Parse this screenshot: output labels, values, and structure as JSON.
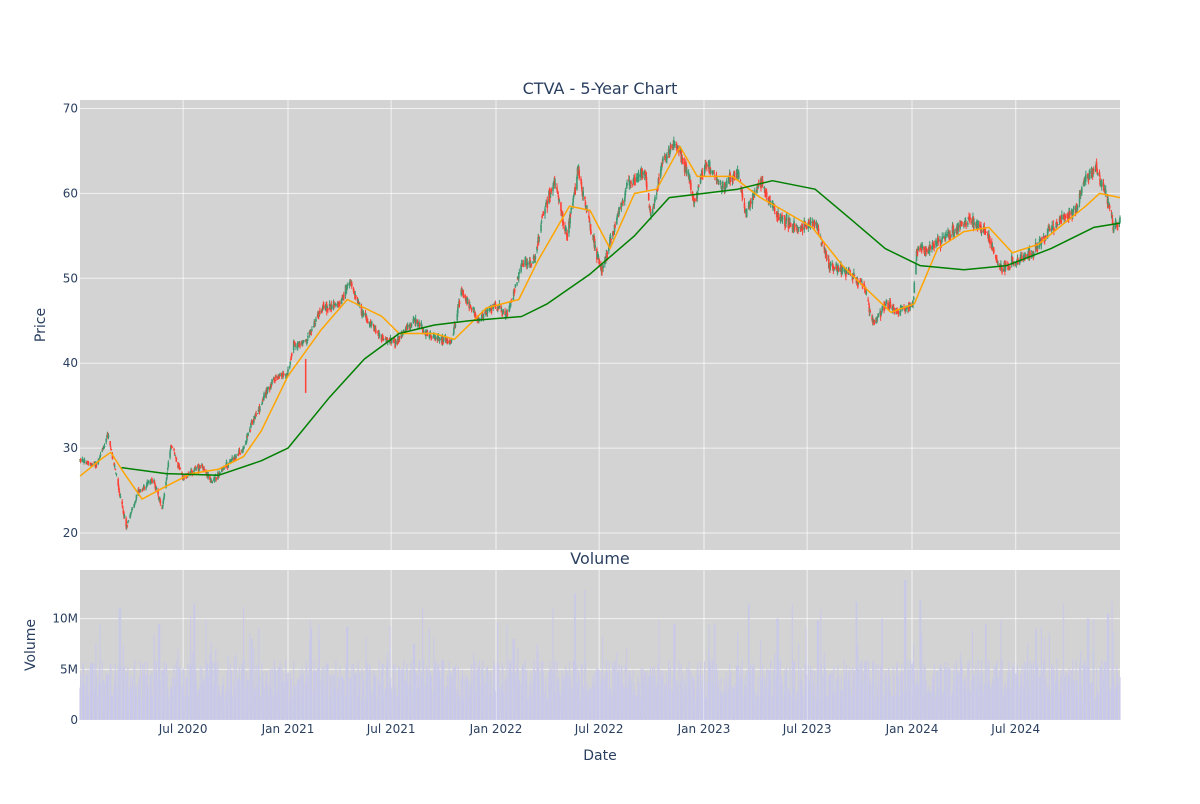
{
  "chart_data": [
    {
      "type": "candlestick",
      "title": "CTVA - 5-Year Chart",
      "ylabel": "Price",
      "ylim": [
        18,
        71
      ],
      "yticks": [
        20,
        30,
        40,
        50,
        60,
        70
      ],
      "grid": true,
      "background": "#d3d3d3",
      "colors": {
        "up": "#3d9970",
        "down": "#ff4136",
        "ma_fast": "#ffa500",
        "ma_slow": "#008000"
      },
      "key_points": [
        [
          "2020-01-02",
          28.6
        ],
        [
          "2020-02-01",
          28.0
        ],
        [
          "2020-02-20",
          31.6
        ],
        [
          "2020-03-05",
          27.0
        ],
        [
          "2020-03-23",
          20.8
        ],
        [
          "2020-04-15",
          25.0
        ],
        [
          "2020-05-10",
          26.2
        ],
        [
          "2020-05-25",
          22.8
        ],
        [
          "2020-06-10",
          30.5
        ],
        [
          "2020-07-01",
          26.5
        ],
        [
          "2020-08-01",
          28.0
        ],
        [
          "2020-08-20",
          26.0
        ],
        [
          "2020-09-15",
          28.0
        ],
        [
          "2020-10-15",
          30.0
        ],
        [
          "2020-10-30",
          33.0
        ],
        [
          "2020-11-20",
          36.0
        ],
        [
          "2020-12-10",
          38.5
        ],
        [
          "2020-12-31",
          38.5
        ],
        [
          "2021-01-10",
          42.0
        ],
        [
          "2021-02-01",
          42.5
        ],
        [
          "2021-03-01",
          46.5
        ],
        [
          "2021-04-01",
          47.0
        ],
        [
          "2021-04-20",
          49.5
        ],
        [
          "2021-05-10",
          46.0
        ],
        [
          "2021-06-15",
          43.0
        ],
        [
          "2021-07-10",
          42.5
        ],
        [
          "2021-08-10",
          45.0
        ],
        [
          "2021-09-10",
          43.0
        ],
        [
          "2021-10-15",
          42.5
        ],
        [
          "2021-11-01",
          48.5
        ],
        [
          "2021-12-01",
          45.0
        ],
        [
          "2021-12-31",
          47.0
        ],
        [
          "2022-01-20",
          45.5
        ],
        [
          "2022-02-15",
          51.5
        ],
        [
          "2022-03-10",
          52.0
        ],
        [
          "2022-03-25",
          58.0
        ],
        [
          "2022-04-15",
          61.5
        ],
        [
          "2022-05-05",
          55.0
        ],
        [
          "2022-05-25",
          62.5
        ],
        [
          "2022-06-25",
          53.5
        ],
        [
          "2022-07-05",
          51.0
        ],
        [
          "2022-08-01",
          57.0
        ],
        [
          "2022-08-20",
          61.0
        ],
        [
          "2022-09-20",
          62.5
        ],
        [
          "2022-09-30",
          57.0
        ],
        [
          "2022-10-20",
          63.5
        ],
        [
          "2022-11-10",
          66.0
        ],
        [
          "2022-12-01",
          63.0
        ],
        [
          "2022-12-15",
          59.0
        ],
        [
          "2023-01-05",
          63.5
        ],
        [
          "2023-02-01",
          60.5
        ],
        [
          "2023-03-01",
          62.5
        ],
        [
          "2023-03-15",
          57.5
        ],
        [
          "2023-04-10",
          61.5
        ],
        [
          "2023-05-10",
          57.5
        ],
        [
          "2023-06-10",
          56.0
        ],
        [
          "2023-07-15",
          56.5
        ],
        [
          "2023-08-10",
          51.5
        ],
        [
          "2023-09-15",
          50.5
        ],
        [
          "2023-10-10",
          49.0
        ],
        [
          "2023-10-25",
          44.5
        ],
        [
          "2023-11-15",
          47.0
        ],
        [
          "2023-12-10",
          46.0
        ],
        [
          "2024-01-03",
          47.0
        ],
        [
          "2024-01-10",
          53.5
        ],
        [
          "2024-02-01",
          53.5
        ],
        [
          "2024-03-01",
          55.0
        ],
        [
          "2024-04-10",
          57.0
        ],
        [
          "2024-05-10",
          55.5
        ],
        [
          "2024-06-05",
          51.0
        ],
        [
          "2024-07-01",
          52.0
        ],
        [
          "2024-08-01",
          53.0
        ],
        [
          "2024-08-20",
          55.0
        ],
        [
          "2024-09-20",
          57.0
        ],
        [
          "2024-10-15",
          58.0
        ],
        [
          "2024-10-30",
          61.5
        ],
        [
          "2024-11-20",
          63.0
        ],
        [
          "2024-12-10",
          59.0
        ],
        [
          "2024-12-20",
          56.0
        ],
        [
          "2024-12-31",
          57.0
        ]
      ],
      "ma_fast_points": [
        [
          "2020-01-02",
          26.7
        ],
        [
          "2020-02-10",
          28.8
        ],
        [
          "2020-02-25",
          29.5
        ],
        [
          "2020-03-20",
          27.0
        ],
        [
          "2020-04-20",
          24.0
        ],
        [
          "2020-06-01",
          25.5
        ],
        [
          "2020-07-15",
          27.0
        ],
        [
          "2020-09-01",
          27.5
        ],
        [
          "2020-10-15",
          29.0
        ],
        [
          "2020-11-15",
          32.0
        ],
        [
          "2021-01-01",
          38.5
        ],
        [
          "2021-03-01",
          44.0
        ],
        [
          "2021-04-15",
          47.5
        ],
        [
          "2021-06-15",
          45.5
        ],
        [
          "2021-07-15",
          43.5
        ],
        [
          "2021-09-15",
          43.5
        ],
        [
          "2021-10-20",
          42.8
        ],
        [
          "2021-12-15",
          46.5
        ],
        [
          "2022-02-10",
          47.5
        ],
        [
          "2022-03-15",
          52.0
        ],
        [
          "2022-05-10",
          58.5
        ],
        [
          "2022-06-15",
          58.0
        ],
        [
          "2022-07-20",
          53.5
        ],
        [
          "2022-09-01",
          60.0
        ],
        [
          "2022-10-10",
          60.5
        ],
        [
          "2022-11-20",
          65.5
        ],
        [
          "2022-12-20",
          62.0
        ],
        [
          "2023-02-20",
          62.0
        ],
        [
          "2023-04-10",
          59.5
        ],
        [
          "2023-05-20",
          58.0
        ],
        [
          "2023-07-10",
          56.0
        ],
        [
          "2023-09-01",
          51.5
        ],
        [
          "2023-10-01",
          49.5
        ],
        [
          "2023-11-25",
          46.0
        ],
        [
          "2024-01-05",
          47.0
        ],
        [
          "2024-02-15",
          53.5
        ],
        [
          "2024-04-01",
          55.5
        ],
        [
          "2024-05-15",
          56.0
        ],
        [
          "2024-06-25",
          53.0
        ],
        [
          "2024-08-10",
          54.0
        ],
        [
          "2024-09-15",
          56.0
        ],
        [
          "2024-11-01",
          58.5
        ],
        [
          "2024-11-25",
          60.0
        ],
        [
          "2024-12-31",
          59.5
        ]
      ],
      "ma_slow_points": [
        [
          "2020-03-15",
          27.7
        ],
        [
          "2020-06-01",
          27.0
        ],
        [
          "2020-09-01",
          26.8
        ],
        [
          "2020-11-15",
          28.5
        ],
        [
          "2021-01-01",
          30.0
        ],
        [
          "2021-03-15",
          36.0
        ],
        [
          "2021-05-15",
          40.5
        ],
        [
          "2021-07-15",
          43.5
        ],
        [
          "2021-09-15",
          44.5
        ],
        [
          "2021-11-15",
          45.0
        ],
        [
          "2022-02-15",
          45.5
        ],
        [
          "2022-04-01",
          47.0
        ],
        [
          "2022-06-15",
          50.5
        ],
        [
          "2022-09-01",
          55.0
        ],
        [
          "2022-11-01",
          59.5
        ],
        [
          "2023-01-01",
          60.0
        ],
        [
          "2023-03-01",
          60.5
        ],
        [
          "2023-05-01",
          61.5
        ],
        [
          "2023-07-15",
          60.5
        ],
        [
          "2023-09-15",
          57.0
        ],
        [
          "2023-11-15",
          53.5
        ],
        [
          "2024-01-15",
          51.5
        ],
        [
          "2024-04-01",
          51.0
        ],
        [
          "2024-06-15",
          51.5
        ],
        [
          "2024-09-01",
          53.5
        ],
        [
          "2024-11-15",
          56.0
        ],
        [
          "2024-12-31",
          56.5
        ]
      ]
    },
    {
      "type": "bar",
      "title": "Volume",
      "xlabel": "Date",
      "ylabel": "Volume",
      "ylim": [
        0,
        14800000
      ],
      "yticks": [
        0,
        5000000,
        10000000
      ],
      "ytick_labels": [
        "0",
        "5M",
        "10M"
      ],
      "xlim": [
        "2020-01-02",
        "2024-12-31"
      ],
      "xticks": [
        "2020-07-01",
        "2021-01-01",
        "2021-07-01",
        "2022-01-01",
        "2022-07-01",
        "2023-01-01",
        "2023-07-01",
        "2024-01-01",
        "2024-07-01"
      ],
      "xtick_labels": [
        "Jul 2020",
        "Jan 2021",
        "Jul 2021",
        "Jan 2022",
        "Jul 2022",
        "Jan 2023",
        "Jul 2023",
        "Jan 2024",
        "Jul 2024"
      ],
      "bar_color": "#c8c8ea",
      "typical_range": [
        2000000,
        6000000
      ],
      "peaks": [
        [
          "2020-03-12",
          11000000
        ],
        [
          "2020-05-20",
          9500000
        ],
        [
          "2020-07-20",
          11500000
        ],
        [
          "2020-10-30",
          8000000
        ],
        [
          "2021-02-10",
          9000000
        ],
        [
          "2021-04-15",
          9200000
        ],
        [
          "2021-08-10",
          7500000
        ],
        [
          "2022-02-01",
          8000000
        ],
        [
          "2022-04-10",
          11000000
        ],
        [
          "2022-05-20",
          12500000
        ],
        [
          "2022-06-05",
          12800000
        ],
        [
          "2022-11-10",
          9500000
        ],
        [
          "2023-01-20",
          9500000
        ],
        [
          "2023-03-20",
          11500000
        ],
        [
          "2023-05-10",
          10000000
        ],
        [
          "2023-07-20",
          9800000
        ],
        [
          "2023-09-25",
          11700000
        ],
        [
          "2023-11-10",
          10000000
        ],
        [
          "2023-12-20",
          13800000
        ],
        [
          "2024-01-15",
          11800000
        ],
        [
          "2024-05-10",
          9500000
        ],
        [
          "2024-08-05",
          9000000
        ],
        [
          "2024-11-05",
          10000000
        ],
        [
          "2024-12-10",
          10500000
        ]
      ]
    }
  ]
}
